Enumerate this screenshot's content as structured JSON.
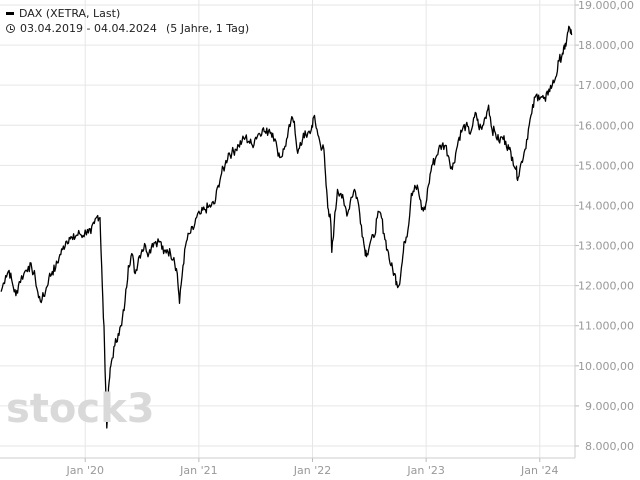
{
  "legend": {
    "series_label": "DAX (XETRA, Last)",
    "range_label": "03.04.2019 - 04.04.2024",
    "period_label": "(5 Jahre, 1 Tag)"
  },
  "watermark": "stock3",
  "colors": {
    "line": "#000000",
    "grid": "#e6e6e6",
    "axis_text": "#999999",
    "background": "#ffffff"
  },
  "chart_data": {
    "type": "line",
    "title": "",
    "xlabel": "",
    "ylabel": "",
    "ylim": [
      7600,
      19000
    ],
    "xlim": [
      2019.25,
      2024.31
    ],
    "x_ticks": [
      {
        "value": 2020.0,
        "label": "Jan '20"
      },
      {
        "value": 2021.0,
        "label": "Jan '21"
      },
      {
        "value": 2022.0,
        "label": "Jan '22"
      },
      {
        "value": 2023.0,
        "label": "Jan '23"
      },
      {
        "value": 2024.0,
        "label": "Jan '24"
      }
    ],
    "y_ticks": [
      {
        "value": 19000,
        "label": "19.000,00"
      },
      {
        "value": 18000,
        "label": "18.000,00"
      },
      {
        "value": 17000,
        "label": "17.000,00"
      },
      {
        "value": 16000,
        "label": "16.000,00"
      },
      {
        "value": 15000,
        "label": "15.000,00"
      },
      {
        "value": 14000,
        "label": "14.000,00"
      },
      {
        "value": 13000,
        "label": "13.000,00"
      },
      {
        "value": 12000,
        "label": "12.000,00"
      },
      {
        "value": 11000,
        "label": "11.000,00"
      },
      {
        "value": 10000,
        "label": "10.000,00"
      },
      {
        "value": 9000,
        "label": "9.000,00"
      },
      {
        "value": 8000,
        "label": "8.000,00"
      }
    ],
    "grid": true,
    "series": [
      {
        "name": "DAX (XETRA, Last)",
        "points": [
          [
            2019.26,
            11850
          ],
          [
            2019.3,
            12250
          ],
          [
            2019.33,
            12380
          ],
          [
            2019.36,
            12050
          ],
          [
            2019.39,
            11750
          ],
          [
            2019.42,
            12100
          ],
          [
            2019.46,
            12300
          ],
          [
            2019.5,
            12480
          ],
          [
            2019.53,
            12430
          ],
          [
            2019.56,
            12200
          ],
          [
            2019.59,
            11700
          ],
          [
            2019.62,
            11650
          ],
          [
            2019.65,
            11850
          ],
          [
            2019.68,
            12200
          ],
          [
            2019.71,
            12350
          ],
          [
            2019.74,
            12450
          ],
          [
            2019.77,
            12700
          ],
          [
            2019.8,
            12900
          ],
          [
            2019.83,
            13100
          ],
          [
            2019.86,
            13200
          ],
          [
            2019.89,
            13150
          ],
          [
            2019.92,
            13250
          ],
          [
            2019.95,
            13300
          ],
          [
            2019.98,
            13250
          ],
          [
            2020.02,
            13400
          ],
          [
            2020.05,
            13300
          ],
          [
            2020.08,
            13550
          ],
          [
            2020.11,
            13750
          ],
          [
            2020.13,
            13700
          ],
          [
            2020.15,
            12000
          ],
          [
            2020.17,
            10500
          ],
          [
            2020.19,
            8450
          ],
          [
            2020.21,
            9600
          ],
          [
            2020.23,
            10100
          ],
          [
            2020.26,
            10500
          ],
          [
            2020.29,
            10800
          ],
          [
            2020.32,
            11000
          ],
          [
            2020.35,
            11600
          ],
          [
            2020.38,
            12500
          ],
          [
            2020.41,
            12800
          ],
          [
            2020.44,
            12300
          ],
          [
            2020.47,
            12700
          ],
          [
            2020.5,
            12900
          ],
          [
            2020.53,
            13000
          ],
          [
            2020.56,
            12800
          ],
          [
            2020.59,
            13050
          ],
          [
            2020.62,
            13100
          ],
          [
            2020.66,
            13100
          ],
          [
            2020.69,
            12800
          ],
          [
            2020.72,
            12900
          ],
          [
            2020.75,
            12800
          ],
          [
            2020.78,
            12700
          ],
          [
            2020.81,
            12300
          ],
          [
            2020.83,
            11560
          ],
          [
            2020.86,
            12500
          ],
          [
            2020.89,
            13100
          ],
          [
            2020.92,
            13300
          ],
          [
            2020.95,
            13400
          ],
          [
            2020.98,
            13700
          ],
          [
            2021.02,
            13800
          ],
          [
            2021.05,
            13900
          ],
          [
            2021.08,
            13950
          ],
          [
            2021.11,
            14000
          ],
          [
            2021.14,
            14050
          ],
          [
            2021.17,
            14500
          ],
          [
            2021.2,
            14800
          ],
          [
            2021.23,
            15000
          ],
          [
            2021.26,
            15300
          ],
          [
            2021.29,
            15300
          ],
          [
            2021.32,
            15400
          ],
          [
            2021.35,
            15500
          ],
          [
            2021.38,
            15600
          ],
          [
            2021.41,
            15700
          ],
          [
            2021.44,
            15600
          ],
          [
            2021.47,
            15500
          ],
          [
            2021.5,
            15700
          ],
          [
            2021.53,
            15800
          ],
          [
            2021.56,
            15900
          ],
          [
            2021.59,
            15800
          ],
          [
            2021.62,
            15900
          ],
          [
            2021.65,
            15800
          ],
          [
            2021.69,
            15400
          ],
          [
            2021.72,
            15200
          ],
          [
            2021.75,
            15400
          ],
          [
            2021.78,
            15700
          ],
          [
            2021.81,
            16100
          ],
          [
            2021.84,
            16100
          ],
          [
            2021.87,
            15300
          ],
          [
            2021.9,
            15500
          ],
          [
            2021.92,
            15800
          ],
          [
            2021.95,
            15700
          ],
          [
            2021.99,
            15900
          ],
          [
            2022.01,
            16200
          ],
          [
            2022.04,
            15900
          ],
          [
            2022.07,
            15500
          ],
          [
            2022.1,
            15400
          ],
          [
            2022.12,
            14500
          ],
          [
            2022.14,
            13900
          ],
          [
            2022.16,
            13600
          ],
          [
            2022.17,
            12830
          ],
          [
            2022.19,
            13500
          ],
          [
            2022.22,
            14400
          ],
          [
            2022.25,
            14300
          ],
          [
            2022.28,
            14000
          ],
          [
            2022.31,
            13800
          ],
          [
            2022.34,
            14200
          ],
          [
            2022.37,
            14400
          ],
          [
            2022.4,
            14100
          ],
          [
            2022.43,
            13500
          ],
          [
            2022.46,
            12900
          ],
          [
            2022.48,
            12800
          ],
          [
            2022.51,
            13100
          ],
          [
            2022.54,
            13200
          ],
          [
            2022.57,
            13700
          ],
          [
            2022.6,
            13800
          ],
          [
            2022.63,
            13300
          ],
          [
            2022.66,
            12900
          ],
          [
            2022.69,
            12500
          ],
          [
            2022.72,
            12300
          ],
          [
            2022.74,
            12100
          ],
          [
            2022.76,
            12000
          ],
          [
            2022.79,
            12600
          ],
          [
            2022.81,
            13100
          ],
          [
            2022.84,
            13400
          ],
          [
            2022.87,
            14300
          ],
          [
            2022.9,
            14500
          ],
          [
            2022.93,
            14400
          ],
          [
            2022.96,
            13900
          ],
          [
            2022.99,
            13900
          ],
          [
            2023.02,
            14500
          ],
          [
            2023.05,
            15000
          ],
          [
            2023.08,
            15150
          ],
          [
            2023.11,
            15400
          ],
          [
            2023.14,
            15500
          ],
          [
            2023.17,
            15500
          ],
          [
            2023.2,
            15200
          ],
          [
            2023.23,
            14900
          ],
          [
            2023.26,
            15300
          ],
          [
            2023.29,
            15700
          ],
          [
            2023.32,
            15900
          ],
          [
            2023.35,
            16000
          ],
          [
            2023.38,
            15800
          ],
          [
            2023.41,
            16000
          ],
          [
            2023.44,
            16300
          ],
          [
            2023.46,
            16000
          ],
          [
            2023.49,
            15900
          ],
          [
            2023.52,
            16200
          ],
          [
            2023.55,
            16500
          ],
          [
            2023.58,
            15900
          ],
          [
            2023.61,
            15800
          ],
          [
            2023.64,
            15600
          ],
          [
            2023.67,
            15700
          ],
          [
            2023.7,
            15600
          ],
          [
            2023.73,
            15400
          ],
          [
            2023.76,
            15200
          ],
          [
            2023.79,
            14900
          ],
          [
            2023.81,
            14700
          ],
          [
            2023.84,
            15100
          ],
          [
            2023.87,
            15400
          ],
          [
            2023.9,
            15900
          ],
          [
            2023.93,
            16300
          ],
          [
            2023.96,
            16700
          ],
          [
            2023.99,
            16750
          ],
          [
            2024.02,
            16700
          ],
          [
            2024.05,
            16600
          ],
          [
            2024.08,
            16900
          ],
          [
            2024.11,
            17000
          ],
          [
            2024.14,
            17200
          ],
          [
            2024.17,
            17600
          ],
          [
            2024.2,
            17800
          ],
          [
            2024.22,
            17900
          ],
          [
            2024.24,
            18200
          ],
          [
            2024.26,
            18450
          ],
          [
            2024.28,
            18250
          ]
        ]
      }
    ]
  }
}
